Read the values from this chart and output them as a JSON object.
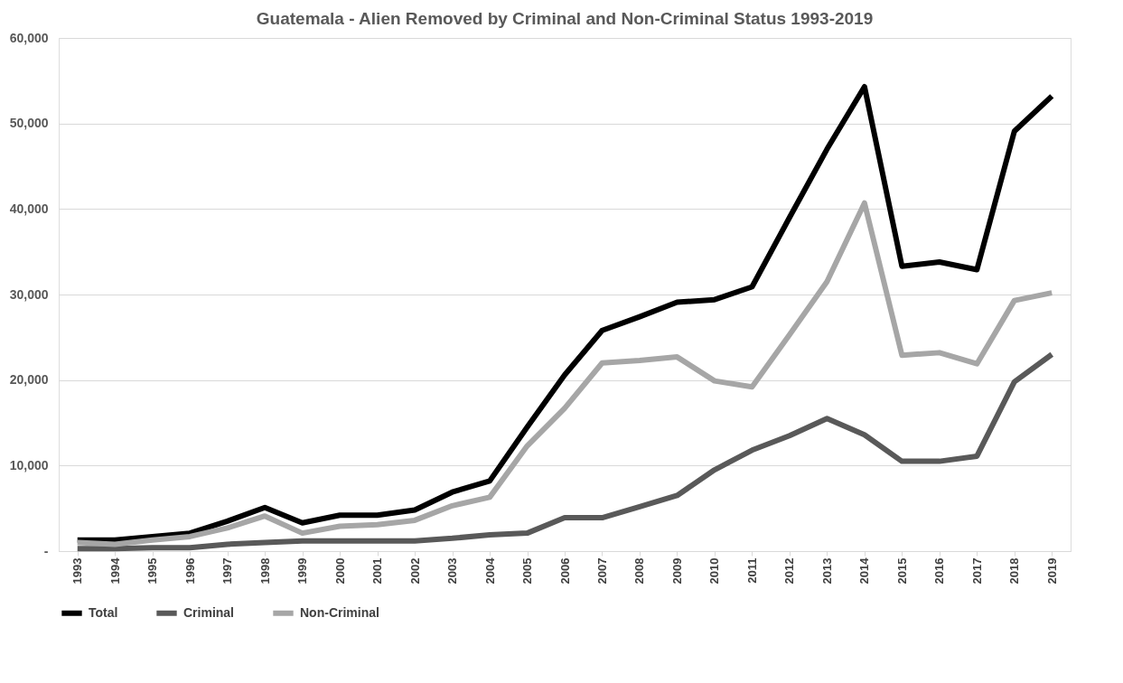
{
  "chart_data": {
    "type": "line",
    "title": "Guatemala - Alien Removed by Criminal and Non-Criminal Status 1993-2019",
    "categories": [
      "1993",
      "1994",
      "1995",
      "1996",
      "1997",
      "1998",
      "1999",
      "2000",
      "2001",
      "2002",
      "2003",
      "2004",
      "2005",
      "2006",
      "2007",
      "2008",
      "2009",
      "2010",
      "2011",
      "2012",
      "2013",
      "2014",
      "2015",
      "2016",
      "2017",
      "2018",
      "2019"
    ],
    "series": [
      {
        "name": "Total",
        "color": "#000000",
        "values": [
          1300,
          1300,
          1700,
          2100,
          3500,
          5100,
          3300,
          4200,
          4200,
          4800,
          6900,
          8200,
          14500,
          20600,
          25800,
          27400,
          29100,
          29400,
          30900,
          39000,
          47000,
          54300,
          33300,
          33800,
          32900,
          49100,
          53200
        ]
      },
      {
        "name": "Criminal",
        "color": "#595959",
        "values": [
          300,
          300,
          400,
          400,
          800,
          1000,
          1200,
          1200,
          1200,
          1200,
          1500,
          1900,
          2100,
          3900,
          3900,
          5200,
          6500,
          9500,
          11800,
          13500,
          15500,
          13600,
          10500,
          10500,
          11100,
          19800,
          23000
        ]
      },
      {
        "name": "Non-Criminal",
        "color": "#a6a6a6",
        "values": [
          1000,
          800,
          1300,
          1700,
          2700,
          4100,
          2100,
          2900,
          3100,
          3600,
          5300,
          6300,
          12300,
          16700,
          22000,
          22300,
          22700,
          19900,
          19200,
          25300,
          31500,
          40700,
          22900,
          23200,
          21900,
          29300,
          30200
        ]
      }
    ],
    "ylim": [
      0,
      60000
    ],
    "yticks": [
      {
        "value": 0,
        "label": "-"
      },
      {
        "value": 10000,
        "label": "10,000"
      },
      {
        "value": 20000,
        "label": "20,000"
      },
      {
        "value": 30000,
        "label": "30,000"
      },
      {
        "value": 40000,
        "label": "40,000"
      },
      {
        "value": 50000,
        "label": "50,000"
      },
      {
        "value": 60000,
        "label": "60,000"
      }
    ],
    "grid": "y",
    "legend": "bottom",
    "marker": "none",
    "line_style": "solid"
  }
}
